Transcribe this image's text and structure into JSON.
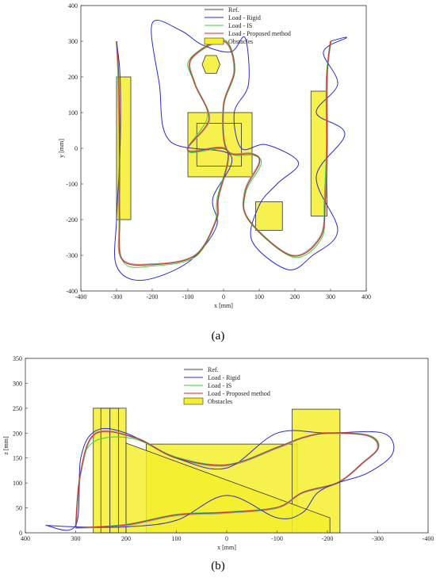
{
  "chart_data": [
    {
      "type": "line",
      "panel_label": "(a)",
      "xlabel": "x [mm]",
      "ylabel": "y [mm]",
      "xlim": [
        -400,
        400
      ],
      "ylim": [
        -400,
        400
      ],
      "xticks": [
        -400,
        -300,
        -200,
        -100,
        0,
        100,
        200,
        300,
        400
      ],
      "yticks": [
        -400,
        -300,
        -200,
        -100,
        0,
        100,
        200,
        300,
        400
      ],
      "legend_position": "top-right",
      "series": [
        {
          "name": "Ref.",
          "color": "#a6a6a6",
          "points": [
            [
              -300,
              300
            ],
            [
              -295,
              200
            ],
            [
              -292,
              0
            ],
            [
              -292,
              -200
            ],
            [
              -285,
              -310
            ],
            [
              -200,
              -325
            ],
            [
              -80,
              -300
            ],
            [
              -20,
              -200
            ],
            [
              -15,
              -140
            ],
            [
              10,
              -5
            ],
            [
              -100,
              -5
            ],
            [
              -40,
              80
            ],
            [
              -80,
              180
            ],
            [
              -90,
              250
            ],
            [
              0,
              300
            ],
            [
              30,
              220
            ],
            [
              0,
              120
            ],
            [
              10,
              -5
            ],
            [
              80,
              -15
            ],
            [
              100,
              -40
            ],
            [
              60,
              -120
            ],
            [
              70,
              -200
            ],
            [
              190,
              -300
            ],
            [
              270,
              -250
            ],
            [
              285,
              -150
            ],
            [
              290,
              0
            ],
            [
              290,
              200
            ],
            [
              300,
              300
            ]
          ]
        },
        {
          "name": "Load - Rigid",
          "color": "#2a2ad0",
          "points": [
            [
              -300,
              300
            ],
            [
              -290,
              200
            ],
            [
              -290,
              0
            ],
            [
              -300,
              -200
            ],
            [
              -300,
              -330
            ],
            [
              -230,
              -370
            ],
            [
              -100,
              -320
            ],
            [
              -20,
              -220
            ],
            [
              -30,
              -140
            ],
            [
              20,
              -20
            ],
            [
              -150,
              20
            ],
            [
              -180,
              180
            ],
            [
              -200,
              350
            ],
            [
              -120,
              330
            ],
            [
              -60,
              290
            ],
            [
              20,
              270
            ],
            [
              60,
              310
            ],
            [
              70,
              180
            ],
            [
              30,
              100
            ],
            [
              50,
              0
            ],
            [
              120,
              10
            ],
            [
              210,
              -40
            ],
            [
              150,
              -100
            ],
            [
              100,
              -160
            ],
            [
              80,
              -260
            ],
            [
              180,
              -340
            ],
            [
              250,
              -300
            ],
            [
              320,
              -230
            ],
            [
              260,
              -80
            ],
            [
              340,
              40
            ],
            [
              260,
              100
            ],
            [
              320,
              180
            ],
            [
              280,
              270
            ],
            [
              345,
              310
            ],
            [
              300,
              300
            ]
          ]
        },
        {
          "name": "Load - IS",
          "color": "#3cd03c",
          "points": [
            [
              -300,
              300
            ],
            [
              -295,
              200
            ],
            [
              -292,
              0
            ],
            [
              -293,
              -200
            ],
            [
              -280,
              -320
            ],
            [
              -200,
              -330
            ],
            [
              -80,
              -305
            ],
            [
              -25,
              -210
            ],
            [
              -18,
              -140
            ],
            [
              10,
              -8
            ],
            [
              -100,
              -8
            ],
            [
              -45,
              90
            ],
            [
              -85,
              190
            ],
            [
              -95,
              250
            ],
            [
              0,
              305
            ],
            [
              32,
              220
            ],
            [
              0,
              115
            ],
            [
              10,
              -8
            ],
            [
              85,
              -20
            ],
            [
              105,
              -45
            ],
            [
              62,
              -125
            ],
            [
              72,
              -205
            ],
            [
              195,
              -305
            ],
            [
              275,
              -252
            ],
            [
              282,
              -150
            ],
            [
              288,
              0
            ],
            [
              288,
              200
            ],
            [
              302,
              300
            ]
          ]
        },
        {
          "name": "Load - Proposed method",
          "color": "#d02a2a",
          "points": [
            [
              -300,
              300
            ],
            [
              -294,
              200
            ],
            [
              -291,
              0
            ],
            [
              -291,
              -200
            ],
            [
              -284,
              -312
            ],
            [
              -200,
              -326
            ],
            [
              -80,
              -301
            ],
            [
              -21,
              -201
            ],
            [
              -15,
              -141
            ],
            [
              10,
              -6
            ],
            [
              -100,
              -6
            ],
            [
              -41,
              82
            ],
            [
              -81,
              182
            ],
            [
              -91,
              251
            ],
            [
              0,
              301
            ],
            [
              31,
              221
            ],
            [
              0,
              119
            ],
            [
              10,
              -6
            ],
            [
              81,
              -16
            ],
            [
              101,
              -41
            ],
            [
              61,
              -121
            ],
            [
              71,
              -201
            ],
            [
              191,
              -301
            ],
            [
              271,
              -251
            ],
            [
              285,
              -150
            ],
            [
              290,
              0
            ],
            [
              290,
              200
            ],
            [
              300,
              300
            ]
          ]
        }
      ],
      "obstacles_label": "Obstacles",
      "obstacle_color": "#f5ef2e"
    },
    {
      "type": "line",
      "panel_label": "(b)",
      "xlabel": "x [mm]",
      "ylabel": "z [mm]",
      "xlim": [
        400,
        -400
      ],
      "ylim": [
        0,
        350
      ],
      "xticks": [
        400,
        300,
        200,
        100,
        0,
        -100,
        -200,
        -300,
        -400
      ],
      "yticks": [
        0,
        50,
        100,
        150,
        200,
        250,
        300,
        350
      ],
      "legend_position": "top-center",
      "series": [
        {
          "name": "Ref.",
          "color": "#a6a6a6",
          "points": [
            [
              300,
              10
            ],
            [
              290,
              120
            ],
            [
              260,
              200
            ],
            [
              180,
              190
            ],
            [
              100,
              150
            ],
            [
              0,
              135
            ],
            [
              -100,
              170
            ],
            [
              -150,
              190
            ],
            [
              -200,
              200
            ],
            [
              -280,
              195
            ],
            [
              -300,
              170
            ],
            [
              -270,
              140
            ],
            [
              -220,
              100
            ],
            [
              -150,
              80
            ],
            [
              -100,
              50
            ],
            [
              0,
              40
            ],
            [
              100,
              35
            ],
            [
              200,
              15
            ],
            [
              300,
              10
            ]
          ]
        },
        {
          "name": "Load - Rigid",
          "color": "#2a2ad0",
          "points": [
            [
              360,
              15
            ],
            [
              300,
              15
            ],
            [
              290,
              150
            ],
            [
              260,
              205
            ],
            [
              200,
              200
            ],
            [
              100,
              150
            ],
            [
              0,
              130
            ],
            [
              -100,
              200
            ],
            [
              -200,
              200
            ],
            [
              -310,
              200
            ],
            [
              -330,
              160
            ],
            [
              -280,
              120
            ],
            [
              -220,
              100
            ],
            [
              -180,
              80
            ],
            [
              -150,
              40
            ],
            [
              -100,
              30
            ],
            [
              0,
              75
            ],
            [
              100,
              25
            ],
            [
              200,
              12
            ],
            [
              300,
              12
            ],
            [
              360,
              15
            ]
          ]
        },
        {
          "name": "Load - IS",
          "color": "#3cd03c",
          "points": [
            [
              300,
              10
            ],
            [
              292,
              110
            ],
            [
              268,
              180
            ],
            [
              190,
              190
            ],
            [
              100,
              152
            ],
            [
              0,
              137
            ],
            [
              -100,
              172
            ],
            [
              -152,
              192
            ],
            [
              -202,
              200
            ],
            [
              -282,
              196
            ],
            [
              -302,
              172
            ],
            [
              -272,
              142
            ],
            [
              -222,
              102
            ],
            [
              -152,
              82
            ],
            [
              -102,
              52
            ],
            [
              0,
              42
            ],
            [
              100,
              37
            ],
            [
              200,
              17
            ],
            [
              300,
              10
            ]
          ]
        },
        {
          "name": "Load - Proposed method",
          "color": "#d02a2a",
          "points": [
            [
              300,
              10
            ],
            [
              291,
              118
            ],
            [
              262,
              198
            ],
            [
              182,
              191
            ],
            [
              102,
              151
            ],
            [
              0,
              136
            ],
            [
              -100,
              171
            ],
            [
              -151,
              191
            ],
            [
              -201,
              200
            ],
            [
              -281,
              195
            ],
            [
              -301,
              171
            ],
            [
              -271,
              141
            ],
            [
              -221,
              101
            ],
            [
              -151,
              81
            ],
            [
              -101,
              51
            ],
            [
              0,
              41
            ],
            [
              100,
              36
            ],
            [
              200,
              16
            ],
            [
              300,
              10
            ]
          ]
        }
      ],
      "obstacles_label": "Obstacles",
      "obstacle_color": "#f5ef2e"
    }
  ]
}
